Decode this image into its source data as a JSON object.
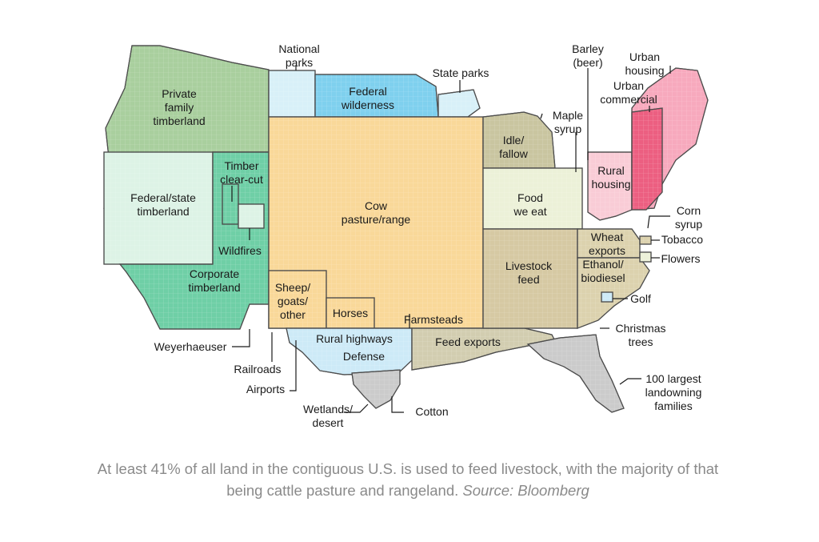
{
  "map": {
    "labels": {
      "national_parks": [
        "National",
        "parks"
      ],
      "state_parks": [
        "State parks"
      ],
      "federal_wilderness": [
        "Federal",
        "wilderness"
      ],
      "private_family_timberland": [
        "Private",
        "family",
        "timberland"
      ],
      "timber_clear_cut": [
        "Timber",
        "clear-cut"
      ],
      "federal_state_timberland": [
        "Federal/state",
        "timberland"
      ],
      "wildfires": [
        "Wildfires"
      ],
      "corporate_timberland": [
        "Corporate",
        "timberland"
      ],
      "weyerhaeuser": [
        "Weyerhaeuser"
      ],
      "cow_pasture_range": [
        "Cow",
        "pasture/range"
      ],
      "sheep_goats_other": [
        "Sheep/",
        "goats/",
        "other"
      ],
      "horses": [
        "Horses"
      ],
      "farmsteads": [
        "Farmsteads"
      ],
      "rural_highways": [
        "Rural highways"
      ],
      "defense": [
        "Defense"
      ],
      "railroads": [
        "Railroads"
      ],
      "airports": [
        "Airports"
      ],
      "wetlands_desert": [
        "Wetlands/",
        "desert"
      ],
      "cotton": [
        "Cotton"
      ],
      "feed_exports": [
        "Feed exports"
      ],
      "idle_fallow": [
        "Idle/",
        "fallow"
      ],
      "maple_syrup": [
        "Maple",
        "syrup"
      ],
      "barley_beer": [
        "Barley",
        "(beer)"
      ],
      "urban_housing": [
        "Urban",
        "housing"
      ],
      "urban_commercial": [
        "Urban",
        "commercial"
      ],
      "rural_housing": [
        "Rural",
        "housing"
      ],
      "food_we_eat": [
        "Food",
        "we eat"
      ],
      "corn_syrup": [
        "Corn",
        "syrup"
      ],
      "tobacco": [
        "Tobacco"
      ],
      "wheat_exports": [
        "Wheat",
        "exports"
      ],
      "flowers": [
        "Flowers"
      ],
      "livestock_feed": [
        "Livestock",
        "feed"
      ],
      "ethanol_biodiesel": [
        "Ethanol/",
        "biodiesel"
      ],
      "golf": [
        "Golf"
      ],
      "christmas_trees": [
        "Christmas",
        "trees"
      ],
      "largest_landowning_families": [
        "100 largest",
        "landowning",
        "families"
      ]
    },
    "colors": {
      "private_timber": "#a9cf9e",
      "federal_state_timber": "#ddf3e6",
      "corporate_timber": "#6fcfa6",
      "national_parks": "#d8f0f8",
      "federal_wilderness": "#7fd0ee",
      "cow_pasture": "#f9d899",
      "sheep_goats": "#f9d899",
      "rural_highways": "#cdeaf7",
      "defense": "#cdeaf7",
      "wetlands": "#cbcbcb",
      "feed_exports": "#d2cdb0",
      "idle_fallow": "#c9c5a0",
      "food_we_eat": "#ecf1d8",
      "livestock_feed": "#d6c9a3",
      "ethanol": "#dcd2ae",
      "rural_housing": "#f9ccd6",
      "urban_housing": "#f7a9bd",
      "urban_commercial": "#ec5f81",
      "largest_families": "#cbcbcb"
    }
  },
  "caption": {
    "text": "At least 41% of all land in the contiguous U.S. is used to feed livestock, with the majority of that being cattle pasture and rangeland.",
    "source": "Source: Bloomberg"
  }
}
